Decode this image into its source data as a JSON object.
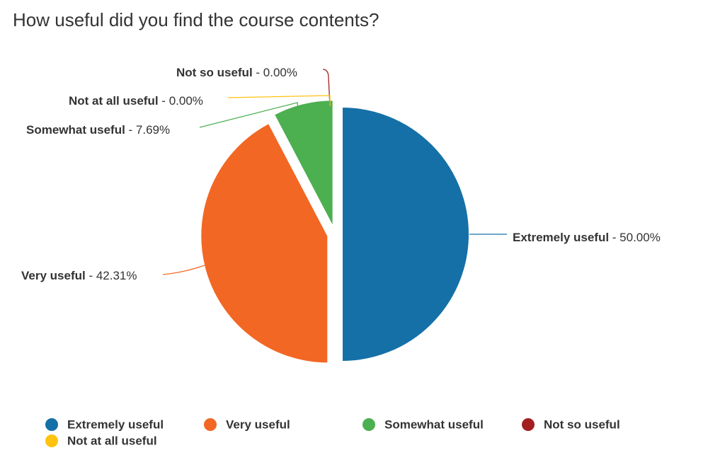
{
  "chart_data": {
    "type": "pie",
    "title": "How useful did you find the course contents?",
    "categories": [
      "Extremely useful",
      "Very useful",
      "Somewhat useful",
      "Not so useful",
      "Not at all useful"
    ],
    "values": [
      50.0,
      42.31,
      7.69,
      0.0,
      0.0
    ],
    "value_labels": [
      "50.00%",
      "42.31%",
      "7.69%",
      "0.00%",
      "0.00%"
    ],
    "colors": [
      "#1570a7",
      "#f26724",
      "#4caf50",
      "#a31f1f",
      "#ffc20e"
    ]
  }
}
